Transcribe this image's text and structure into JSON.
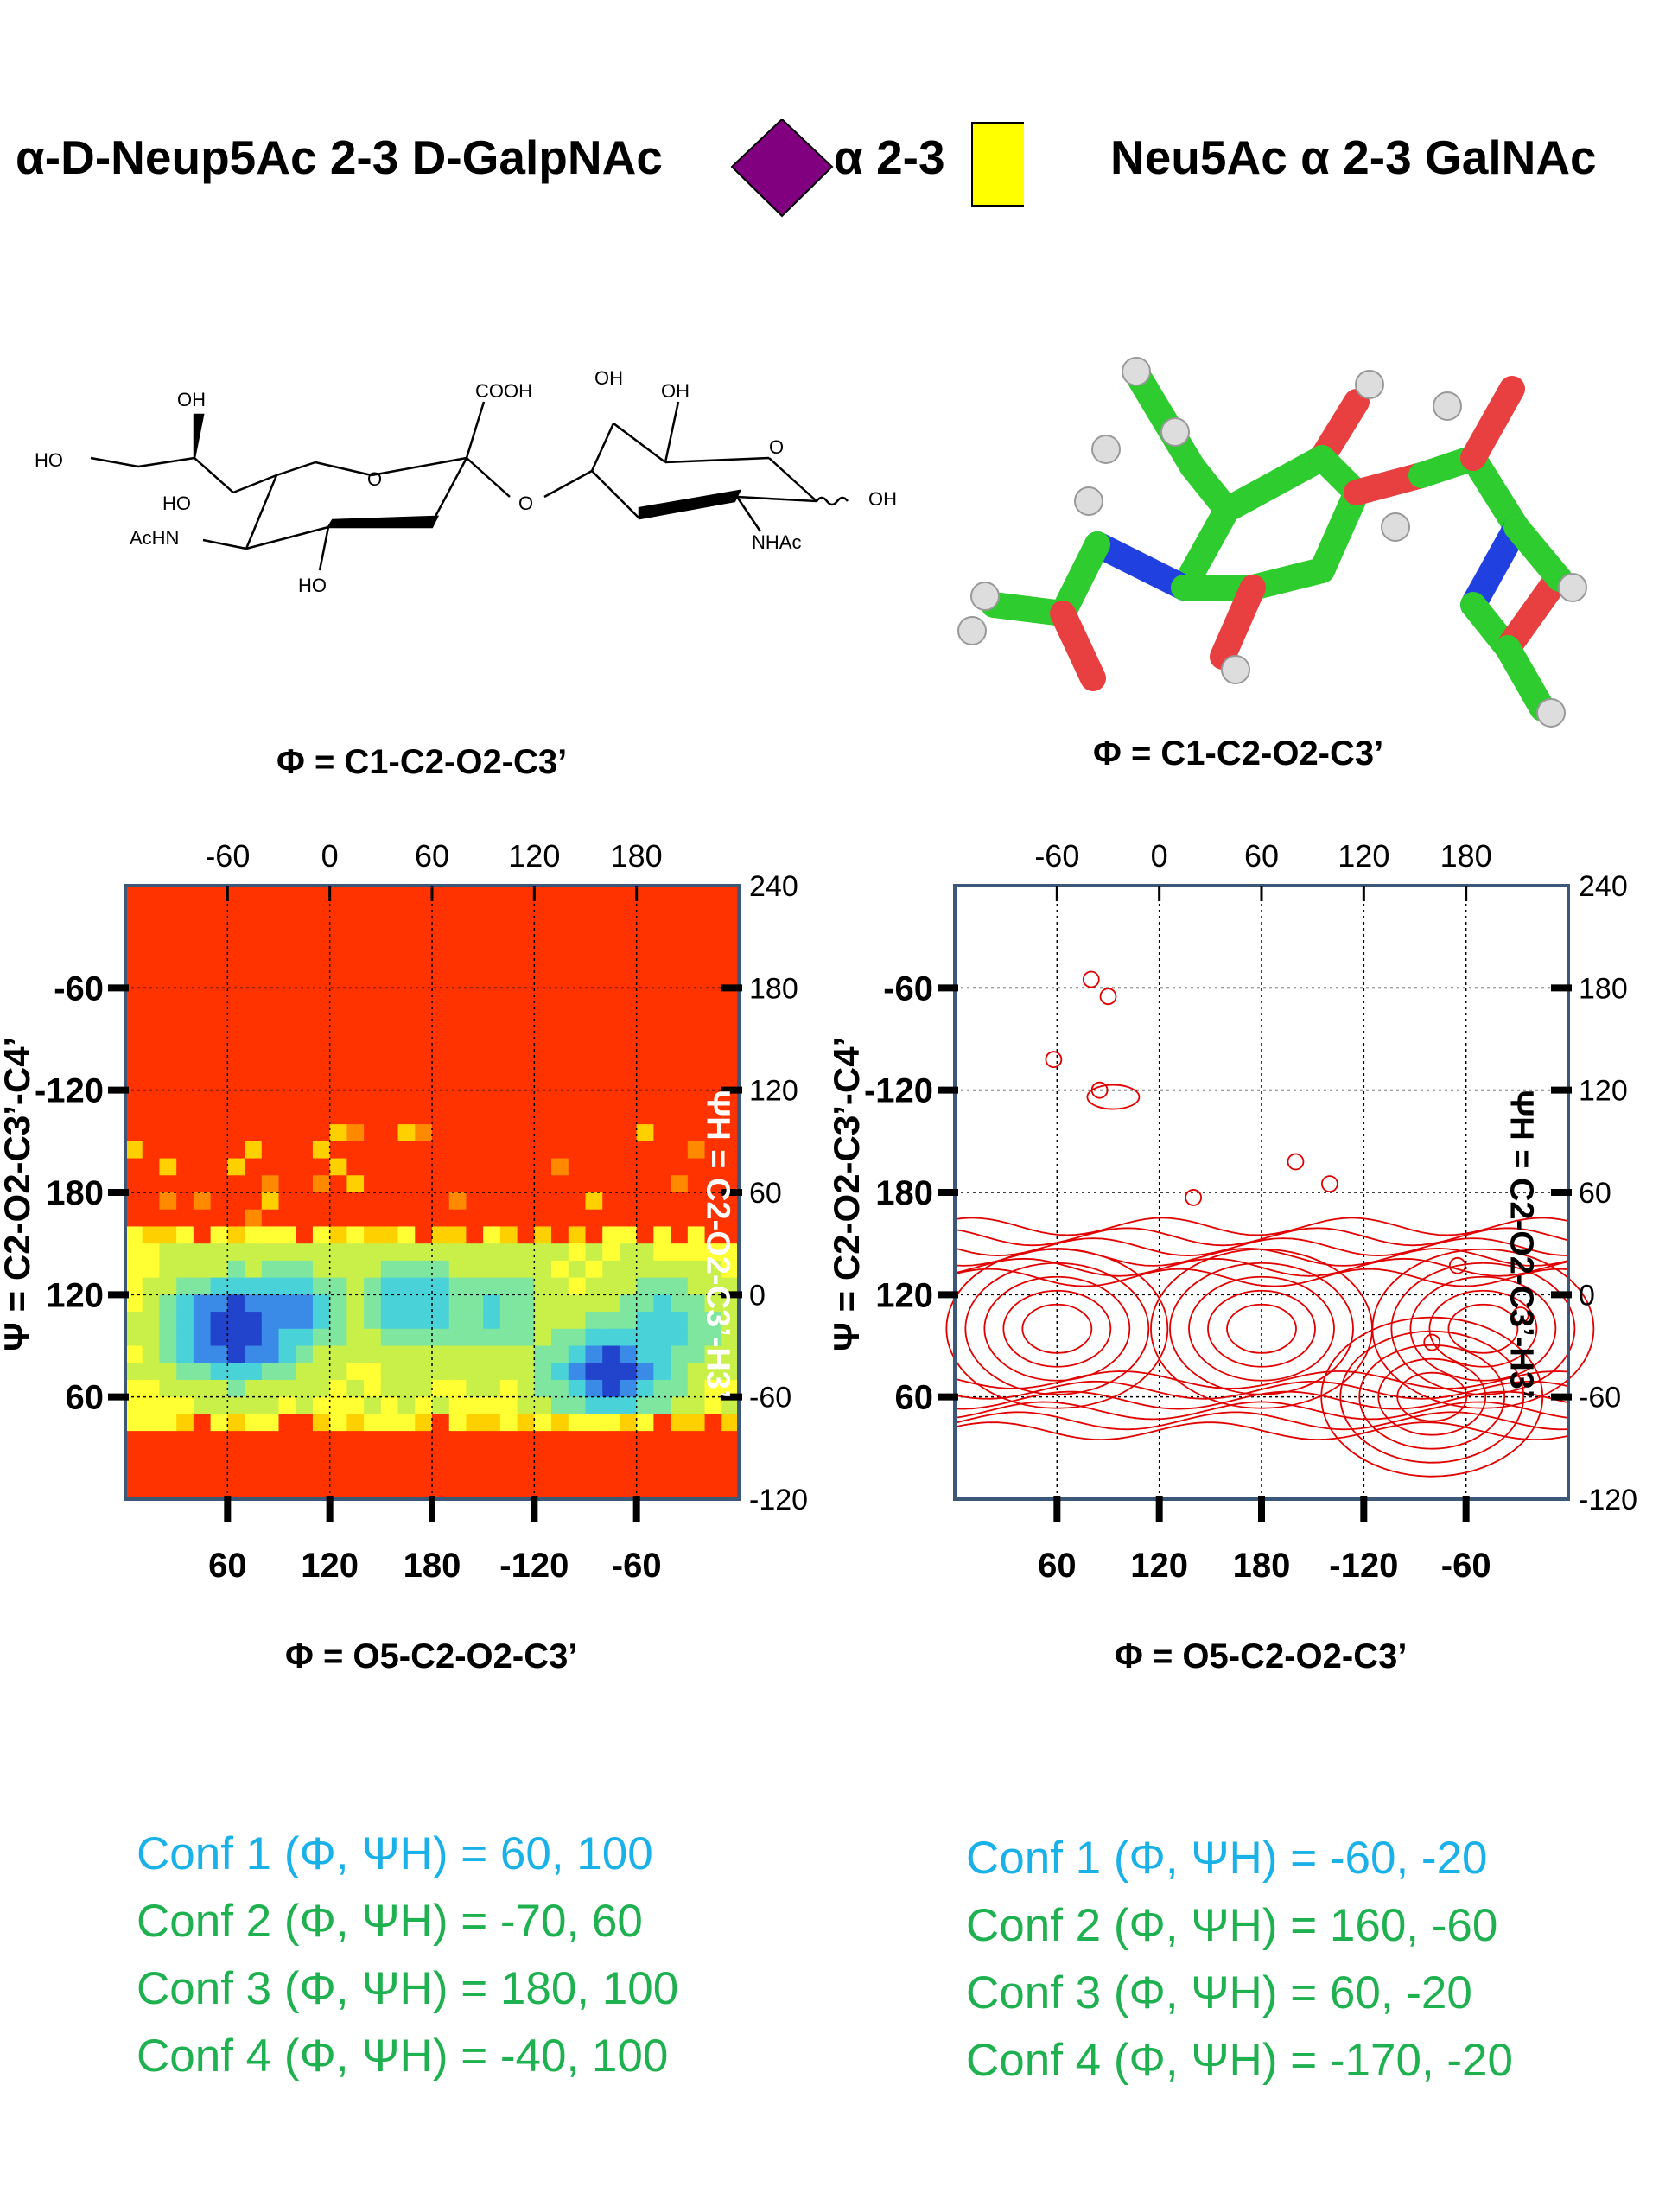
{
  "header": {
    "left_title": "α-D-Neup5Ac 2-3 D-GalpNAc",
    "linkage_label": "α 2-3",
    "right_title": "Neu5Ac α 2-3 GalNAc",
    "colors": {
      "neu5ac_diamond": "#800080",
      "galnac_square": "#ffff00"
    },
    "icons": [
      "neu5ac-diamond-icon",
      "galnac-square-icon"
    ]
  },
  "structure": {
    "labels": [
      "OH",
      "HO",
      "HO",
      "AcHN",
      "HO",
      "O",
      "COOH",
      "O",
      "OH",
      "OH",
      "O",
      "OH",
      "NHAc"
    ]
  },
  "panels": [
    {
      "phi_top_label": "Φ = C1-C2-O2-C3’",
      "phi_bottom_label": "Φ = O5-C2-O2-C3’",
      "psi_left_label": "Ψ = C2-O2-C3’-C4’",
      "psi_right_label": "ΨH = C2-O2-C3’-H3’",
      "confs": [
        {
          "text": "Conf 1 (Φ, ΨH) =  60, 100",
          "color": "#1ab0e8"
        },
        {
          "text": "Conf 2 (Φ, ΨH) = -70,  60",
          "color": "#1fb050"
        },
        {
          "text": "Conf 3 (Φ, ΨH) =  180, 100",
          "color": "#1fb050"
        },
        {
          "text": "Conf 4 (Φ, ΨH) = -40,  100",
          "color": "#1fb050"
        }
      ]
    },
    {
      "phi_top_label": "Φ = C1-C2-O2-C3’",
      "phi_bottom_label": "Φ = O5-C2-O2-C3’",
      "psi_left_label": "Ψ = C2-O2-C3’-C4’",
      "psi_right_label": "ΨH = C2-O2-C3’-H3’",
      "confs": [
        {
          "text": "Conf 1 (Φ, ΨH) = -60, -20",
          "color": "#1ab0e8"
        },
        {
          "text": "Conf 2 (Φ, ΨH) =  160, -60",
          "color": "#1fb050"
        },
        {
          "text": "Conf 3 (Φ, ΨH) =   60,  -20",
          "color": "#1fb050"
        },
        {
          "text": "Conf 4 (Φ, ΨH) = -170, -20",
          "color": "#1fb050"
        }
      ]
    }
  ],
  "chart_data": [
    {
      "type": "heatmap",
      "top_ticks": [
        "-60",
        "0",
        "60",
        "120",
        "180"
      ],
      "right_ticks": [
        "240",
        "180",
        "120",
        "60",
        "0",
        "-60",
        "-120"
      ],
      "left_ticks": [
        "-60",
        "-120",
        "180",
        "120",
        "60"
      ],
      "bottom_ticks": [
        "60",
        "120",
        "180",
        "-120",
        "-60"
      ],
      "phi_range": [
        -120,
        240
      ],
      "psi_range": [
        -120,
        240
      ],
      "colormap": [
        "#ff3300",
        "#ff8a00",
        "#ffd000",
        "#ffff33",
        "#c8f048",
        "#7fe6a0",
        "#49d2d8",
        "#3a8ae8",
        "#2244cc"
      ],
      "background": "#ff3300",
      "minima": [
        {
          "phi": -55,
          "psi": -20,
          "depth": 1.0
        },
        {
          "phi": -25,
          "psi": -10,
          "depth": 0.65
        },
        {
          "phi": 50,
          "psi": -5,
          "depth": 0.55
        },
        {
          "phi": 95,
          "psi": -10,
          "depth": 0.45
        },
        {
          "phi": 165,
          "psi": -45,
          "depth": 0.85
        },
        {
          "phi": 195,
          "psi": -20,
          "depth": 0.55
        }
      ],
      "band_upper_psi": 38,
      "band_lower_psi": -78,
      "grid": true
    },
    {
      "type": "contour",
      "top_ticks": [
        "-60",
        "0",
        "60",
        "120",
        "180"
      ],
      "right_ticks": [
        "240",
        "180",
        "120",
        "60",
        "0",
        "-60",
        "-120"
      ],
      "left_ticks": [
        "-60",
        "-120",
        "180",
        "120",
        "60"
      ],
      "bottom_ticks": [
        "60",
        "120",
        "180",
        "-120",
        "-60"
      ],
      "phi_range": [
        -120,
        240
      ],
      "psi_range": [
        -120,
        240
      ],
      "contour_color": "#e00000",
      "minima": [
        {
          "phi": -60,
          "psi": -20
        },
        {
          "phi": 60,
          "psi": -20
        },
        {
          "phi": 160,
          "psi": -60
        },
        {
          "phi": 190,
          "psi": -20
        }
      ],
      "grid": true
    }
  ]
}
